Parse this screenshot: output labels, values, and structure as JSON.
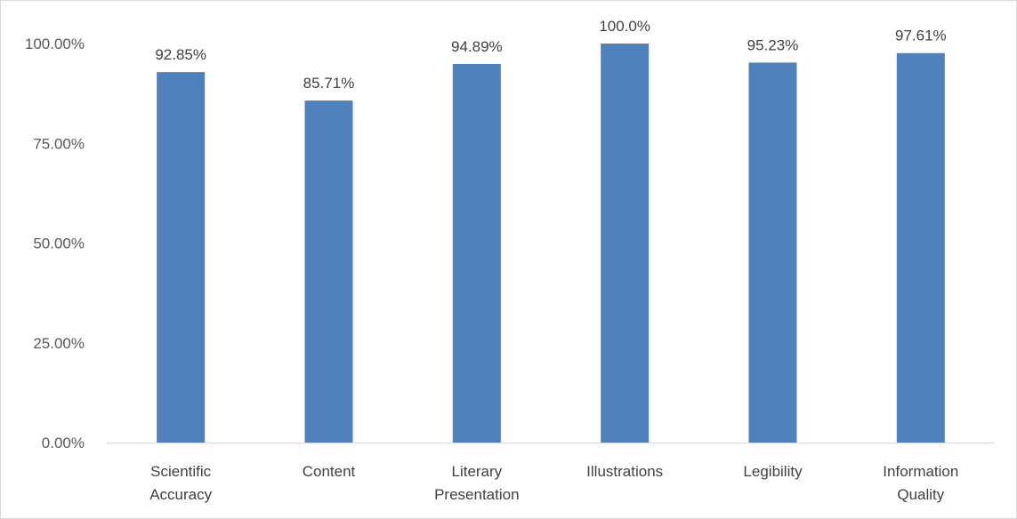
{
  "chart_data": {
    "type": "bar",
    "categories": [
      [
        "Scientific",
        "Accuracy"
      ],
      [
        "Content"
      ],
      [
        "Literary",
        "Presentation"
      ],
      [
        "Illustrations"
      ],
      [
        "Legibility"
      ],
      [
        "Information",
        "Quality"
      ]
    ],
    "values": [
      92.85,
      85.71,
      94.89,
      100.0,
      95.23,
      97.61
    ],
    "data_labels": [
      "92.85%",
      "85.71%",
      "94.89%",
      "100.0%",
      "95.23%",
      "97.61%"
    ],
    "y_ticks": [
      0,
      25,
      50,
      75,
      100
    ],
    "y_tick_labels": [
      "0.00%",
      "25.00%",
      "50.00%",
      "75.00%",
      "100.00%"
    ],
    "ylim": [
      0,
      100
    ],
    "title": "",
    "xlabel": "",
    "ylabel": "",
    "grid": false,
    "legend": "none",
    "colors": {
      "bar": "#4F81BD",
      "axis": "#D9D9D9",
      "tick_text": "#595959",
      "label_text": "#404040"
    }
  }
}
